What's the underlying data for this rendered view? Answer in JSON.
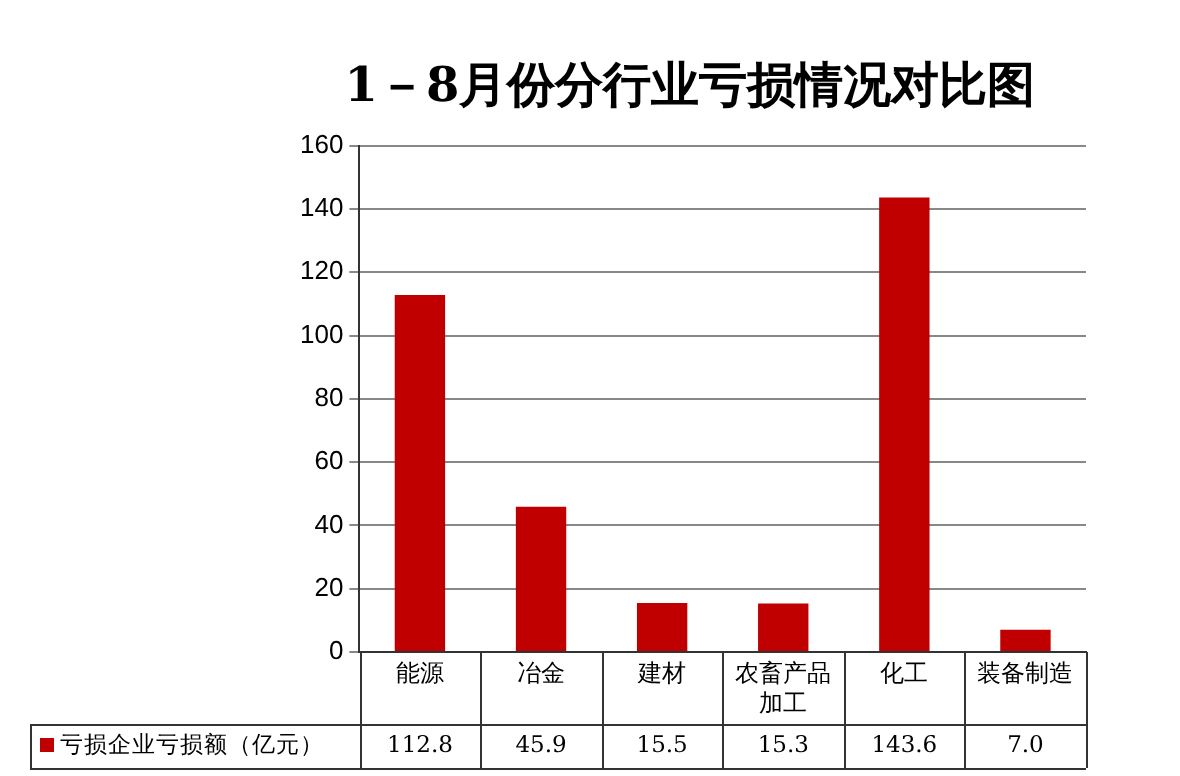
{
  "chart_data": {
    "type": "bar",
    "title": "1－8月份分行业亏损情况对比图",
    "categories": [
      "能源",
      "冶金",
      "建材",
      "农畜产品加工",
      "化工",
      "装备制造"
    ],
    "series": [
      {
        "name": "亏损企业亏损额（亿元）",
        "color": "#c00000",
        "values": [
          112.8,
          45.9,
          15.5,
          15.3,
          143.6,
          7.0
        ],
        "value_labels": [
          "112.8",
          "45.9",
          "15.5",
          "15.3",
          "143.6",
          "7.0"
        ]
      }
    ],
    "ylim": [
      0,
      160
    ],
    "yticks": [
      0,
      20,
      40,
      60,
      80,
      100,
      120,
      140,
      160
    ],
    "grid": "y",
    "legend": "bottom left"
  }
}
